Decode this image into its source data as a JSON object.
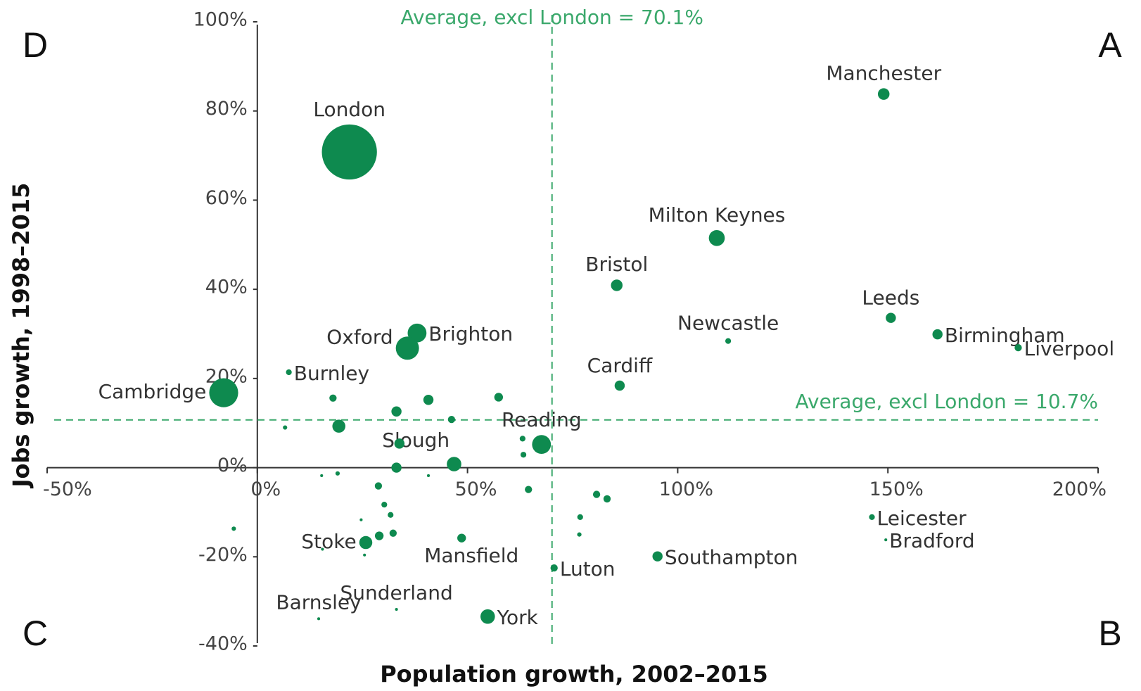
{
  "chart_data": {
    "type": "bubble",
    "xlabel": "Population growth, 2002–2015",
    "ylabel": "Jobs growth, 1998–2015",
    "xlim": [
      -50,
      200
    ],
    "ylim": [
      -40,
      100
    ],
    "xticks": [
      {
        "value": -50,
        "label": "-50%"
      },
      {
        "value": 0,
        "label": "0%"
      },
      {
        "value": 50,
        "label": "50%"
      },
      {
        "value": 100,
        "label": "100%"
      },
      {
        "value": 150,
        "label": "150%"
      },
      {
        "value": 200,
        "label": "200%"
      }
    ],
    "yticks": [
      {
        "value": -40,
        "label": "-40%"
      },
      {
        "value": -20,
        "label": "-20%"
      },
      {
        "value": 0,
        "label": "0%"
      },
      {
        "value": 20,
        "label": "20%"
      },
      {
        "value": 40,
        "label": "40%"
      },
      {
        "value": 60,
        "label": "60%"
      },
      {
        "value": 80,
        "label": "80%"
      },
      {
        "value": 100,
        "label": "100%"
      }
    ],
    "color": "#0e8a4f",
    "quadrants": [
      "D",
      "A",
      "C",
      "B"
    ],
    "annotations": [
      {
        "text": "Average, excl London = 70.1%",
        "axis": "x",
        "value": 70.1
      },
      {
        "text": "Average, excl London = 10.7%",
        "axis": "y",
        "value": 10.7
      }
    ],
    "names": [
      "London",
      "Manchester",
      "Milton Keynes",
      "Bristol",
      "Leeds",
      "Birmingham",
      "Liverpool",
      "Newcastle",
      "Cardiff",
      "Brighton",
      "Oxford",
      "Burnley",
      "Cambridge",
      "Reading",
      "Slough",
      "Stoke",
      "Mansfield",
      "Luton",
      "Southampton",
      "Sunderland",
      "Barnsley",
      "York",
      "Leicester",
      "Bradford",
      null,
      null,
      null,
      null,
      null,
      null,
      null,
      null,
      null,
      null,
      null,
      null,
      null,
      null,
      null,
      null,
      null,
      null,
      null,
      null,
      null,
      null,
      null,
      null,
      null,
      null,
      null,
      null
    ],
    "x": [
      21.9,
      149,
      109.3,
      85.5,
      150.7,
      161.8,
      181,
      112,
      86.2,
      38,
      35.7,
      7.5,
      -8,
      67.6,
      46.8,
      25.8,
      48.6,
      70.6,
      95.2,
      33.1,
      14.6,
      54.8,
      146.2,
      149.5,
      18,
      33.1,
      40.7,
      57.4,
      46.2,
      19.4,
      6.6,
      33.8,
      33.1,
      63.1,
      63.3,
      19.1,
      15.3,
      40.7,
      28.8,
      30.2,
      31.7,
      24.7,
      32.3,
      29,
      -5.6,
      15.5,
      25.5,
      64.5,
      80.7,
      83.2,
      76.8,
      76.6
    ],
    "y": [
      70.8,
      83.8,
      51.5,
      40.9,
      33.6,
      29.9,
      26.9,
      28.4,
      18.4,
      30.2,
      26.8,
      21.4,
      16.8,
      5.2,
      0.8,
      -16.8,
      -15.8,
      -22.5,
      -19.9,
      -31.8,
      -33.9,
      -33.4,
      -11.1,
      -16.2,
      15.6,
      12.6,
      15.2,
      15.8,
      10.8,
      9.3,
      9,
      5.4,
      0,
      6.5,
      2.9,
      -1.3,
      -1.8,
      -1.8,
      -4.1,
      -8.3,
      -10.6,
      -11.7,
      -14.7,
      -15.3,
      -13.7,
      -18.3,
      -19.6,
      -4.9,
      -6.0,
      -7.0,
      -11.1,
      -15.0
    ],
    "sizes": [
      38,
      8,
      11,
      8,
      7,
      7,
      5,
      4,
      7,
      13,
      16,
      4,
      20,
      13,
      10,
      9,
      6,
      5,
      7,
      2,
      2,
      10,
      4,
      2,
      5,
      7,
      7,
      6,
      5,
      9,
      3,
      7,
      7,
      4,
      4,
      3,
      2,
      2,
      5,
      4,
      4,
      2,
      5,
      6,
      3,
      2,
      2,
      5,
      5,
      5,
      4,
      3
    ]
  }
}
